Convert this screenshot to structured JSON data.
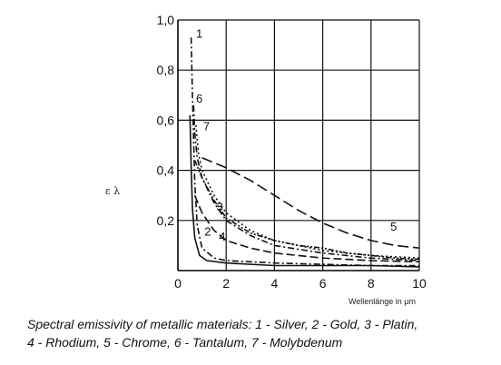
{
  "chart_data": {
    "type": "line",
    "xlabel": "Wellenlänge in μm",
    "ylabel": "ε λ",
    "xlim": [
      0,
      10
    ],
    "ylim": [
      0,
      1.0
    ],
    "x_ticks": [
      "0",
      "2",
      "4",
      "6",
      "8",
      "10"
    ],
    "y_ticks": [
      "0,2",
      "0,4",
      "0,6",
      "0,8",
      "1,0"
    ],
    "grid": true,
    "series": [
      {
        "name": "1",
        "style": "dashdot",
        "points": [
          [
            0.55,
            0.93
          ],
          [
            0.6,
            0.7
          ],
          [
            0.7,
            0.35
          ],
          [
            0.8,
            0.18
          ],
          [
            1,
            0.09
          ],
          [
            1.5,
            0.05
          ],
          [
            2,
            0.04
          ],
          [
            4,
            0.03
          ],
          [
            6,
            0.025
          ],
          [
            8,
            0.02
          ],
          [
            10,
            0.02
          ]
        ]
      },
      {
        "name": "2",
        "style": "solid",
        "points": [
          [
            0.5,
            0.62
          ],
          [
            0.55,
            0.42
          ],
          [
            0.6,
            0.25
          ],
          [
            0.7,
            0.13
          ],
          [
            0.9,
            0.06
          ],
          [
            1.2,
            0.04
          ],
          [
            2,
            0.03
          ],
          [
            4,
            0.02
          ],
          [
            6,
            0.02
          ],
          [
            8,
            0.02
          ],
          [
            10,
            0.015
          ]
        ]
      },
      {
        "name": "3",
        "style": "dashdotdot",
        "points": [
          [
            0.7,
            0.44
          ],
          [
            1,
            0.37
          ],
          [
            1.5,
            0.28
          ],
          [
            2,
            0.21
          ],
          [
            3,
            0.15
          ],
          [
            4,
            0.12
          ],
          [
            5,
            0.1
          ],
          [
            6,
            0.09
          ],
          [
            7,
            0.07
          ],
          [
            8,
            0.06
          ],
          [
            9,
            0.05
          ],
          [
            10,
            0.045
          ]
        ]
      },
      {
        "name": "4",
        "style": "longdash",
        "points": [
          [
            0.7,
            0.3
          ],
          [
            1,
            0.23
          ],
          [
            1.5,
            0.16
          ],
          [
            2,
            0.12
          ],
          [
            3,
            0.09
          ],
          [
            4,
            0.07
          ],
          [
            6,
            0.05
          ],
          [
            8,
            0.04
          ],
          [
            10,
            0.035
          ]
        ]
      },
      {
        "name": "5",
        "style": "dashed",
        "points": [
          [
            1,
            0.45
          ],
          [
            2,
            0.41
          ],
          [
            3,
            0.36
          ],
          [
            4,
            0.3
          ],
          [
            5,
            0.24
          ],
          [
            6,
            0.19
          ],
          [
            7,
            0.15
          ],
          [
            8,
            0.12
          ],
          [
            9,
            0.1
          ],
          [
            10,
            0.09
          ]
        ]
      },
      {
        "name": "6",
        "style": "dashdot",
        "points": [
          [
            0.65,
            0.66
          ],
          [
            0.7,
            0.55
          ],
          [
            0.8,
            0.45
          ],
          [
            1,
            0.37
          ],
          [
            1.5,
            0.27
          ],
          [
            2,
            0.2
          ],
          [
            3,
            0.14
          ],
          [
            4,
            0.1
          ],
          [
            6,
            0.07
          ],
          [
            8,
            0.05
          ],
          [
            10,
            0.04
          ]
        ]
      },
      {
        "name": "7",
        "style": "dotted",
        "points": [
          [
            0.75,
            0.58
          ],
          [
            0.85,
            0.47
          ],
          [
            1,
            0.4
          ],
          [
            1.5,
            0.3
          ],
          [
            2,
            0.23
          ],
          [
            3,
            0.16
          ],
          [
            4,
            0.12
          ],
          [
            6,
            0.08
          ],
          [
            8,
            0.06
          ],
          [
            10,
            0.05
          ]
        ]
      }
    ],
    "curve_labels": [
      {
        "text": "1",
        "x": 0.75,
        "y": 0.93
      },
      {
        "text": "6",
        "x": 0.75,
        "y": 0.67
      },
      {
        "text": "7",
        "x": 1.05,
        "y": 0.56
      },
      {
        "text": "3",
        "x": 1.6,
        "y": 0.24
      },
      {
        "text": "2",
        "x": 1.1,
        "y": 0.14
      },
      {
        "text": "4",
        "x": 1.7,
        "y": 0.12
      },
      {
        "text": "5",
        "x": 8.8,
        "y": 0.16
      }
    ]
  },
  "caption": {
    "line1": "Spectral emissivity of metallic materials: 1 - Silver, 2 - Gold, 3 - Platin,",
    "line2": "4 - Rhodium, 5 - Chrome, 6 - Tantalum, 7 - Molybdenum"
  }
}
